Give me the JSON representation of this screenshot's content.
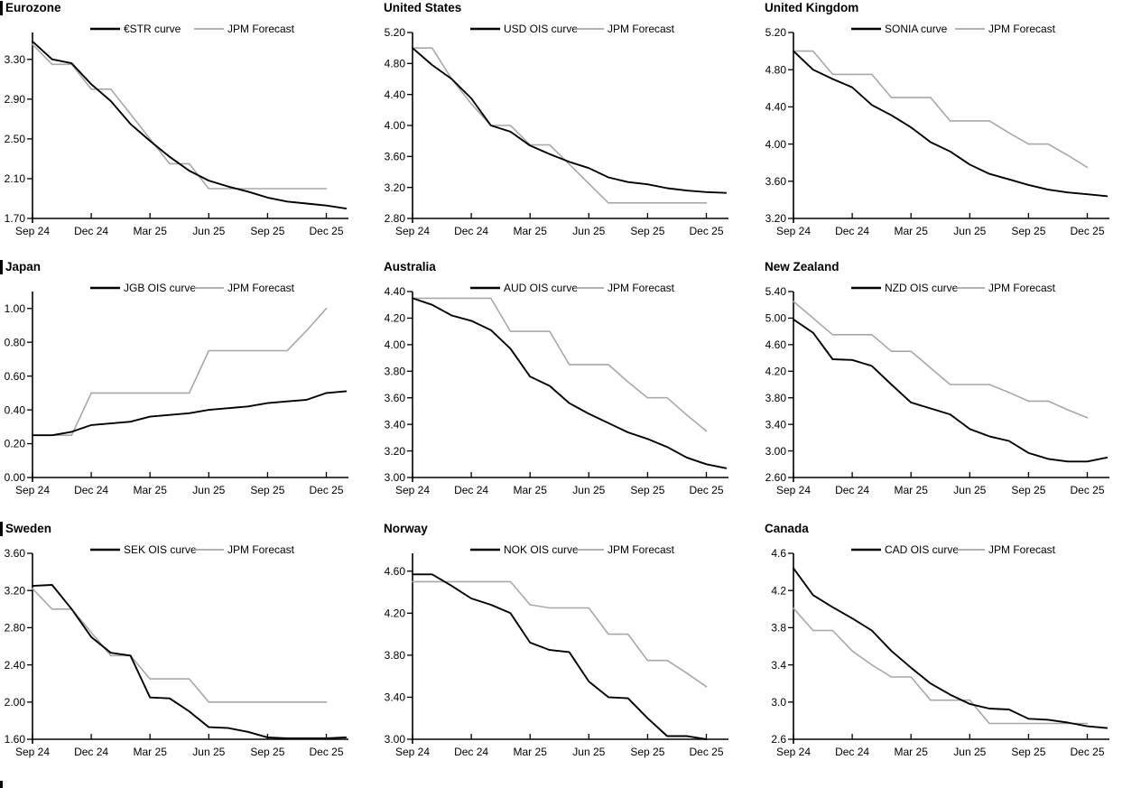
{
  "page": {
    "background": "#ffffff"
  },
  "colors": {
    "market_line": "#000000",
    "forecast_line": "#a8a8a8",
    "axis": "#000000",
    "text": "#000000"
  },
  "x_axis": {
    "tick_labels": [
      "Sep 24",
      "Dec 24",
      "Mar 25",
      "Jun 25",
      "Sep 25",
      "Dec 25"
    ],
    "months_per_tick": 3,
    "months_total": 16
  },
  "legend": {
    "forecast_label": "JPM Forecast"
  },
  "chart_data": [
    {
      "type": "line",
      "title": "Eurozone",
      "ylim": [
        1.7,
        3.57
      ],
      "yticks": [
        "1.70",
        "2.10",
        "2.50",
        "2.90",
        "3.30"
      ],
      "x_months_from": "Sep 24",
      "series": [
        {
          "name": "€STR curve",
          "role": "market",
          "color": "#000000",
          "values": [
            3.48,
            3.3,
            3.26,
            3.05,
            2.88,
            2.65,
            2.48,
            2.32,
            2.18,
            2.08,
            2.02,
            1.97,
            1.91,
            1.87,
            1.85,
            1.83,
            1.8
          ]
        },
        {
          "name": "JPM Forecast",
          "role": "forecast",
          "color": "#a8a8a8",
          "values": [
            3.45,
            3.25,
            3.25,
            3.0,
            3.0,
            2.75,
            2.5,
            2.25,
            2.25,
            2.0,
            2.0,
            2.0,
            2.0,
            2.0,
            2.0,
            2.0
          ]
        }
      ]
    },
    {
      "type": "line",
      "title": "United States",
      "ylim": [
        2.8,
        5.2
      ],
      "yticks": [
        "2.80",
        "3.20",
        "3.60",
        "4.00",
        "4.40",
        "4.80",
        "5.20"
      ],
      "x_months_from": "Sep 24",
      "series": [
        {
          "name": "USD OIS curve",
          "role": "market",
          "color": "#000000",
          "values": [
            5.0,
            4.78,
            4.6,
            4.35,
            4.0,
            3.92,
            3.74,
            3.63,
            3.53,
            3.45,
            3.33,
            3.27,
            3.24,
            3.19,
            3.16,
            3.14,
            3.13
          ]
        },
        {
          "name": "JPM Forecast",
          "role": "forecast",
          "color": "#a8a8a8",
          "values": [
            5.0,
            5.0,
            4.6,
            4.28,
            4.0,
            4.0,
            3.75,
            3.75,
            3.5,
            3.25,
            3.0,
            3.0,
            3.0,
            3.0,
            3.0,
            3.0
          ]
        }
      ]
    },
    {
      "type": "line",
      "title": "United Kingdom",
      "ylim": [
        3.2,
        5.2
      ],
      "yticks": [
        "3.20",
        "3.60",
        "4.00",
        "4.40",
        "4.80",
        "5.20"
      ],
      "x_months_from": "Sep 24",
      "series": [
        {
          "name": "SONIA curve",
          "role": "market",
          "color": "#000000",
          "values": [
            5.0,
            4.8,
            4.7,
            4.61,
            4.42,
            4.31,
            4.18,
            4.02,
            3.92,
            3.78,
            3.68,
            3.62,
            3.56,
            3.51,
            3.48,
            3.46,
            3.44
          ]
        },
        {
          "name": "JPM Forecast",
          "role": "forecast",
          "color": "#a8a8a8",
          "values": [
            5.0,
            5.0,
            4.75,
            4.75,
            4.75,
            4.5,
            4.5,
            4.5,
            4.25,
            4.25,
            4.25,
            4.12,
            4.0,
            4.0,
            3.88,
            3.75
          ]
        }
      ]
    },
    {
      "type": "line",
      "title": "Japan",
      "ylim": [
        0.0,
        1.1
      ],
      "yticks": [
        "0.00",
        "0.20",
        "0.40",
        "0.60",
        "0.80",
        "1.00"
      ],
      "x_months_from": "Sep 24",
      "series": [
        {
          "name": "JGB OIS curve",
          "role": "market",
          "color": "#000000",
          "values": [
            0.25,
            0.25,
            0.27,
            0.31,
            0.32,
            0.33,
            0.36,
            0.37,
            0.38,
            0.4,
            0.41,
            0.42,
            0.44,
            0.45,
            0.46,
            0.5,
            0.51
          ]
        },
        {
          "name": "JPM Forecast",
          "role": "forecast",
          "color": "#a8a8a8",
          "values": [
            0.25,
            0.25,
            0.25,
            0.5,
            0.5,
            0.5,
            0.5,
            0.5,
            0.5,
            0.75,
            0.75,
            0.75,
            0.75,
            0.75,
            0.87,
            1.0
          ]
        }
      ]
    },
    {
      "type": "line",
      "title": "Australia",
      "ylim": [
        3.0,
        4.4
      ],
      "yticks": [
        "3.00",
        "3.20",
        "3.40",
        "3.60",
        "3.80",
        "4.00",
        "4.20",
        "4.40"
      ],
      "x_months_from": "Sep 24",
      "series": [
        {
          "name": "AUD OIS curve",
          "role": "market",
          "color": "#000000",
          "values": [
            4.35,
            4.3,
            4.22,
            4.18,
            4.11,
            3.97,
            3.76,
            3.69,
            3.56,
            3.48,
            3.41,
            3.34,
            3.29,
            3.23,
            3.15,
            3.1,
            3.07
          ]
        },
        {
          "name": "JPM Forecast",
          "role": "forecast",
          "color": "#a8a8a8",
          "values": [
            4.35,
            4.35,
            4.35,
            4.35,
            4.35,
            4.1,
            4.1,
            4.1,
            3.85,
            3.85,
            3.85,
            3.72,
            3.6,
            3.6,
            3.47,
            3.35
          ]
        }
      ]
    },
    {
      "type": "line",
      "title": "New Zealand",
      "ylim": [
        2.6,
        5.4
      ],
      "yticks": [
        "2.60",
        "3.00",
        "3.40",
        "3.80",
        "4.20",
        "4.60",
        "5.00",
        "5.40"
      ],
      "x_months_from": "Sep 24",
      "series": [
        {
          "name": "NZD OIS curve",
          "role": "market",
          "color": "#000000",
          "values": [
            4.98,
            4.78,
            4.38,
            4.37,
            4.28,
            4.0,
            3.73,
            3.64,
            3.55,
            3.33,
            3.22,
            3.15,
            2.97,
            2.88,
            2.84,
            2.84,
            2.9
          ]
        },
        {
          "name": "JPM Forecast",
          "role": "forecast",
          "color": "#a8a8a8",
          "values": [
            5.25,
            5.0,
            4.75,
            4.75,
            4.75,
            4.5,
            4.5,
            4.25,
            4.0,
            4.0,
            4.0,
            3.88,
            3.75,
            3.75,
            3.62,
            3.5
          ]
        }
      ]
    },
    {
      "type": "line",
      "title": "Sweden",
      "ylim": [
        1.6,
        3.6
      ],
      "yticks": [
        "1.60",
        "2.00",
        "2.40",
        "2.80",
        "3.20",
        "3.60"
      ],
      "x_months_from": "Sep 24",
      "series": [
        {
          "name": "SEK OIS curve",
          "role": "market",
          "color": "#000000",
          "values": [
            3.25,
            3.26,
            3.0,
            2.7,
            2.53,
            2.5,
            2.05,
            2.04,
            1.9,
            1.73,
            1.72,
            1.68,
            1.62,
            1.61,
            1.61,
            1.61,
            1.62
          ]
        },
        {
          "name": "JPM Forecast",
          "role": "forecast",
          "color": "#a8a8a8",
          "values": [
            3.22,
            3.0,
            3.0,
            2.75,
            2.5,
            2.5,
            2.25,
            2.25,
            2.25,
            2.0,
            2.0,
            2.0,
            2.0,
            2.0,
            2.0,
            2.0
          ]
        }
      ]
    },
    {
      "type": "line",
      "title": "Norway",
      "ylim": [
        3.0,
        4.77
      ],
      "yticks": [
        "3.00",
        "3.40",
        "3.80",
        "4.20",
        "4.60"
      ],
      "x_months_from": "Sep 24",
      "series": [
        {
          "name": "NOK OIS curve",
          "role": "market",
          "color": "#000000",
          "values": [
            4.57,
            4.57,
            4.46,
            4.34,
            4.28,
            4.2,
            3.92,
            3.85,
            3.83,
            3.55,
            3.4,
            3.39,
            3.2,
            3.03,
            3.03,
            3.0
          ]
        },
        {
          "name": "JPM Forecast",
          "role": "forecast",
          "color": "#a8a8a8",
          "values": [
            4.5,
            4.5,
            4.5,
            4.5,
            4.5,
            4.5,
            4.28,
            4.25,
            4.25,
            4.25,
            4.0,
            4.0,
            3.75,
            3.75,
            3.63,
            3.5
          ]
        }
      ]
    },
    {
      "type": "line",
      "title": "Canada",
      "ylim": [
        2.6,
        4.6
      ],
      "yticks": [
        "2.6",
        "3.0",
        "3.4",
        "3.8",
        "4.2",
        "4.6"
      ],
      "x_months_from": "Sep 24",
      "series": [
        {
          "name": "CAD OIS curve",
          "role": "market",
          "color": "#000000",
          "values": [
            4.44,
            4.15,
            4.02,
            3.9,
            3.77,
            3.55,
            3.37,
            3.2,
            3.08,
            2.98,
            2.93,
            2.92,
            2.82,
            2.81,
            2.78,
            2.74,
            2.72
          ]
        },
        {
          "name": "JPM Forecast",
          "role": "forecast",
          "color": "#a8a8a8",
          "values": [
            4.01,
            3.77,
            3.77,
            3.55,
            3.4,
            3.27,
            3.27,
            3.02,
            3.02,
            3.02,
            2.77,
            2.77,
            2.77,
            2.77,
            2.77,
            2.77
          ]
        }
      ]
    }
  ]
}
